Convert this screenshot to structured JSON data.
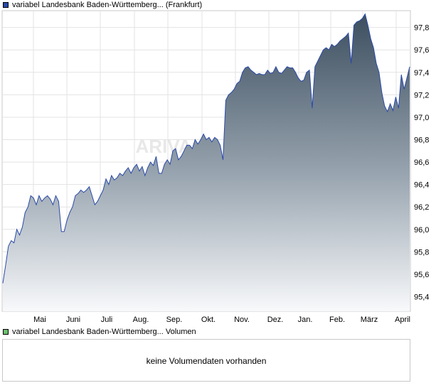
{
  "price_legend": {
    "label": "variabel Landesbank Baden-Württemberg... (Frankfurt)",
    "color": "#2a4aa8"
  },
  "volume_legend": {
    "label": "variabel Landesbank Baden-Württemberg... Volumen",
    "color": "#6cbf6c"
  },
  "volume_panel": {
    "message": "keine Volumendaten vorhanden"
  },
  "watermark": "ARIVA",
  "chart_data": {
    "type": "area",
    "x_tick_labels": [
      "Mai",
      "Juni",
      "Juli",
      "Aug.",
      "Sep.",
      "Okt.",
      "Nov.",
      "Dez.",
      "Jan.",
      "Feb.",
      "März",
      "April"
    ],
    "y_ticks": [
      95.4,
      95.6,
      95.8,
      96.0,
      96.2,
      96.4,
      96.6,
      96.8,
      97.0,
      97.2,
      97.4,
      97.6,
      97.8
    ],
    "ylim": [
      95.27,
      97.95
    ],
    "grid": true,
    "values": [
      95.52,
      95.68,
      95.85,
      95.9,
      95.88,
      96.0,
      95.95,
      96.02,
      96.15,
      96.2,
      96.3,
      96.28,
      96.22,
      96.3,
      96.25,
      96.28,
      96.3,
      96.27,
      96.22,
      96.3,
      96.25,
      95.98,
      95.98,
      96.08,
      96.15,
      96.2,
      96.3,
      96.32,
      96.35,
      96.33,
      96.35,
      96.38,
      96.3,
      96.22,
      96.25,
      96.3,
      96.35,
      96.45,
      96.4,
      96.48,
      96.44,
      96.46,
      96.5,
      96.48,
      96.52,
      96.55,
      96.5,
      96.55,
      96.58,
      96.52,
      96.56,
      96.48,
      96.55,
      96.6,
      96.57,
      96.65,
      96.5,
      96.5,
      96.58,
      96.62,
      96.58,
      96.7,
      96.72,
      96.62,
      96.65,
      96.7,
      96.75,
      96.75,
      96.72,
      96.8,
      96.76,
      96.8,
      96.85,
      96.8,
      96.82,
      96.78,
      96.82,
      96.8,
      96.75,
      96.62,
      97.15,
      97.2,
      97.22,
      97.25,
      97.3,
      97.32,
      97.4,
      97.44,
      97.45,
      97.42,
      97.4,
      97.38,
      97.39,
      97.38,
      97.38,
      97.42,
      97.39,
      97.4,
      97.45,
      97.4,
      97.39,
      97.42,
      97.45,
      97.44,
      97.44,
      97.4,
      97.35,
      97.32,
      97.33,
      97.4,
      97.42,
      97.08,
      97.45,
      97.5,
      97.55,
      97.6,
      97.62,
      97.6,
      97.65,
      97.63,
      97.65,
      97.68,
      97.7,
      97.72,
      97.75,
      97.48,
      97.82,
      97.85,
      97.86,
      97.88,
      97.92,
      97.82,
      97.7,
      97.62,
      97.48,
      97.4,
      97.22,
      97.1,
      97.05,
      97.12,
      97.06,
      97.18,
      97.08,
      97.38,
      97.25,
      97.35,
      97.45
    ]
  }
}
